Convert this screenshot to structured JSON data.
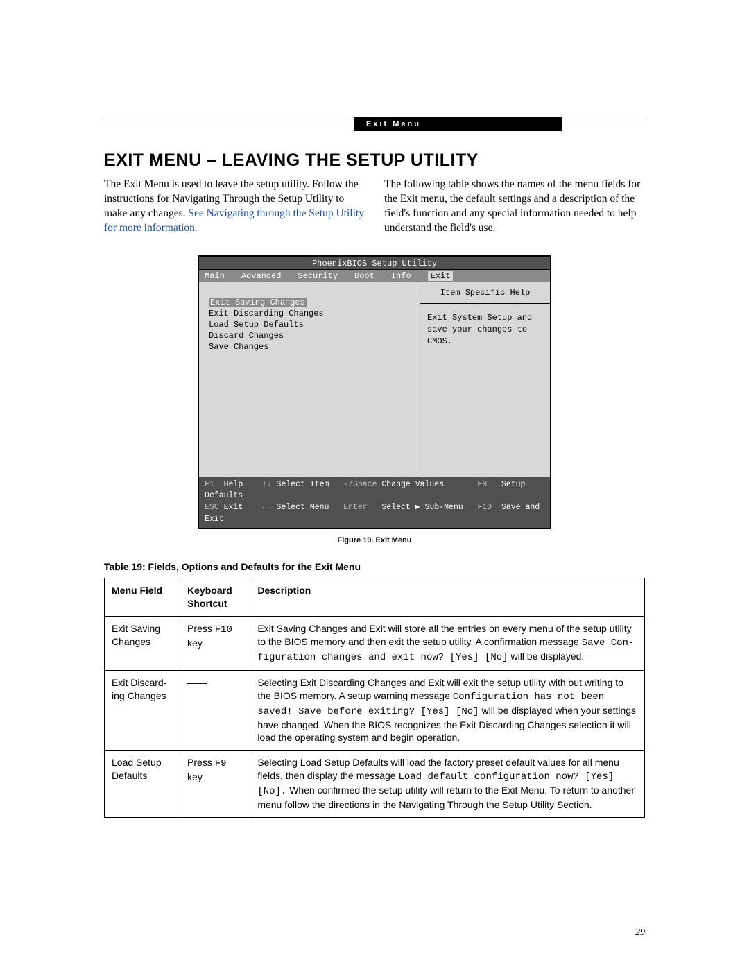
{
  "header_tab": "Exit Menu",
  "page_title": "EXIT MENU – LEAVING THE SETUP UTILITY",
  "intro_left_a": "The Exit Menu is used to leave the setup utility. Follow the instructions for Navigating Through the Setup Utility to make any changes. ",
  "intro_left_link": "See Navigating through the Setup Utility for more information.",
  "intro_right": "The following table shows the names of the menu fields for the Exit menu, the default settings and a description of the field's function and any special information needed to help understand the field's use.",
  "bios": {
    "title": "PhoenixBIOS Setup Utility",
    "tabs": [
      "Main",
      "Advanced",
      "Security",
      "Boot",
      "Info",
      "Exit"
    ],
    "selected_tab": "Exit",
    "items": [
      "Exit Saving Changes",
      "Exit Discarding Changes",
      "Load Setup Defaults",
      "Discard Changes",
      "Save Changes"
    ],
    "selected_item": "Exit Saving Changes",
    "help_title": "Item Specific Help",
    "help_body": "Exit System Setup and save your changes to CMOS.",
    "footer_l1": "F1  Help    ↑↓ Select Item   -/Space Change Values       F9   Setup Defaults",
    "footer_l2": "ESC Exit    ←→ Select Menu   Enter   Select ▶ Sub-Menu   F10  Save and Exit"
  },
  "figure_caption": "Figure 19.  Exit Menu",
  "table_caption": "Table 19: Fields, Options and Defaults for the Exit Menu",
  "table": {
    "headers": [
      "Menu Field",
      "Keyboard Shortcut",
      "Description"
    ],
    "rows": [
      {
        "field": "Exit Saving Changes",
        "shortcut_pre": "Press ",
        "shortcut_mono": "F10",
        "shortcut_post": " key",
        "desc_a": "Exit Saving Changes and Exit will store all the entries on every menu of the setup utility to the BIOS memory and then exit the setup utility. A confirmation message ",
        "desc_mono": "Save Con­figuration changes and exit now? [Yes] [No]",
        "desc_b": " will be displayed."
      },
      {
        "field": "Exit Discard­ing Changes",
        "shortcut_pre": "——",
        "shortcut_mono": "",
        "shortcut_post": "",
        "desc_a": "Selecting Exit Discarding Changes and Exit will exit the setup utility with out writing to the BIOS memory. A setup warning message ",
        "desc_mono": "Configuration has not been saved! Save before exiting? [Yes] [No]",
        "desc_b": " will be displayed when your settings have changed. When the BIOS recognizes the Exit Discarding Changes selection it will load the operating system and begin operation."
      },
      {
        "field": "Load Setup Defaults",
        "shortcut_pre": "Press ",
        "shortcut_mono": "F9",
        "shortcut_post": " key",
        "desc_a": "Selecting Load Setup Defaults will load the factory preset default values for all menu fields, then display the message ",
        "desc_mono": "Load default configuration now? [Yes] [No].",
        "desc_b": " When confirmed the setup utility will return to the Exit Menu. To return to another menu follow the directions in the Navigating Through the Setup Utility Section."
      }
    ]
  },
  "page_number": "29"
}
